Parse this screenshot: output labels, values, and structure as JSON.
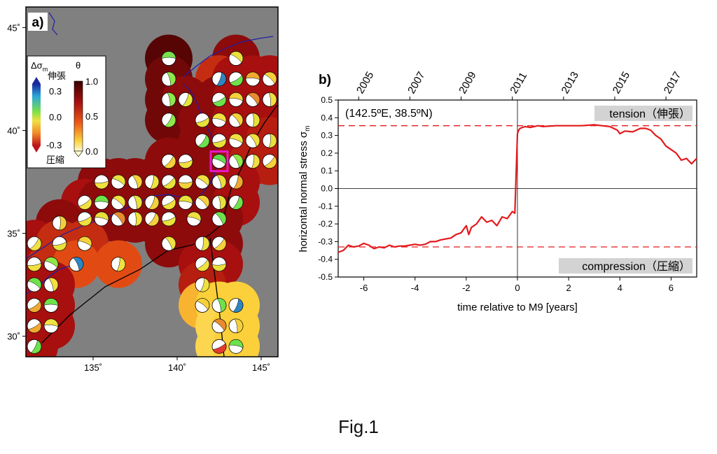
{
  "figure_caption": "Fig.1",
  "panel_a": {
    "label": "a)",
    "lat_ticks": [
      "45˚",
      "40˚",
      "35˚",
      "30˚"
    ],
    "lat_values": [
      45,
      40,
      35,
      30
    ],
    "lon_ticks": [
      "135˚",
      "140˚",
      "145˚"
    ],
    "lon_values": [
      135,
      140,
      145
    ],
    "lon_range": [
      131,
      146
    ],
    "lat_range": [
      29,
      46
    ],
    "legend": {
      "title_sigma": "Δσ",
      "title_sigma_sub": "m",
      "title_theta": "θ",
      "tension_label": "伸張",
      "compression_label": "圧縮",
      "sigma_ticks": [
        "0.3",
        "0.0",
        "-0.3"
      ],
      "theta_ticks": [
        "1.0",
        "0.5",
        "0.0"
      ]
    },
    "colors": {
      "land": "#808080",
      "coast": "#1d1dae",
      "highlight_box": "#e619c8"
    },
    "cells": [
      {
        "lon": 139.5,
        "lat": 43.5,
        "theta": 0.95,
        "ball": "#78e04a"
      },
      {
        "lon": 143.5,
        "lat": 43.5,
        "theta": 0.85,
        "ball": "#e8e13c"
      },
      {
        "lon": 139.5,
        "lat": 42.5,
        "theta": 0.9,
        "ball": "#8fe84a"
      },
      {
        "lon": 142.5,
        "lat": 42.5,
        "theta": 0.7,
        "ball": "#2e86c1"
      },
      {
        "lon": 143.5,
        "lat": 42.5,
        "theta": 0.8,
        "ball": "#6ee24c"
      },
      {
        "lon": 144.5,
        "lat": 42.5,
        "theta": 0.8,
        "ball": "#f0a830"
      },
      {
        "lon": 145.5,
        "lat": 42.5,
        "theta": 0.8,
        "ball": "#f4d13a"
      },
      {
        "lon": 139.5,
        "lat": 41.5,
        "theta": 0.9,
        "ball": "#8fe84a"
      },
      {
        "lon": 140.5,
        "lat": 41.5,
        "theta": 0.85,
        "ball": "#e4e63a"
      },
      {
        "lon": 142.5,
        "lat": 41.5,
        "theta": 0.85,
        "ball": "#6ee24c"
      },
      {
        "lon": 143.5,
        "lat": 41.5,
        "theta": 0.8,
        "ball": "#f4d13a"
      },
      {
        "lon": 144.5,
        "lat": 41.5,
        "theta": 0.8,
        "ball": "#e88a30"
      },
      {
        "lon": 145.5,
        "lat": 41.5,
        "theta": 0.8,
        "ball": "#f0e040"
      },
      {
        "lon": 139.5,
        "lat": 40.5,
        "theta": 0.9,
        "ball": "#8fe84a"
      },
      {
        "lon": 141.5,
        "lat": 40.5,
        "theta": 0.85,
        "ball": "#e8e13c"
      },
      {
        "lon": 142.5,
        "lat": 40.5,
        "theta": 0.85,
        "ball": "#f0e040"
      },
      {
        "lon": 143.5,
        "lat": 40.5,
        "theta": 0.8,
        "ball": "#f4d13a"
      },
      {
        "lon": 144.5,
        "lat": 40.5,
        "theta": 0.8,
        "ball": "#e8e13c"
      },
      {
        "lon": 141.5,
        "lat": 39.5,
        "theta": 0.85,
        "ball": "#6ee24c"
      },
      {
        "lon": 142.5,
        "lat": 39.5,
        "theta": 0.85,
        "ball": "#e8e13c"
      },
      {
        "lon": 143.5,
        "lat": 39.5,
        "theta": 0.8,
        "ball": "#f0e040"
      },
      {
        "lon": 144.5,
        "lat": 39.5,
        "theta": 0.8,
        "ball": "#f0e040"
      },
      {
        "lon": 145.5,
        "lat": 39.5,
        "theta": 0.75,
        "ball": "#e8e13c"
      },
      {
        "lon": 139.5,
        "lat": 38.5,
        "theta": 0.85,
        "ball": "#f4d13a"
      },
      {
        "lon": 140.5,
        "lat": 38.5,
        "theta": 0.85,
        "ball": "#f0e040"
      },
      {
        "lon": 142.5,
        "lat": 38.5,
        "theta": 0.85,
        "ball": "#5fdc4a"
      },
      {
        "lon": 143.5,
        "lat": 38.5,
        "theta": 0.8,
        "ball": "#8fe84a"
      },
      {
        "lon": 144.5,
        "lat": 38.5,
        "theta": 0.75,
        "ball": "#f0e040"
      },
      {
        "lon": 145.5,
        "lat": 38.5,
        "theta": 0.75,
        "ball": "#f4d13a"
      },
      {
        "lon": 135.5,
        "lat": 37.5,
        "theta": 0.85,
        "ball": "#f0e040"
      },
      {
        "lon": 136.5,
        "lat": 37.5,
        "theta": 0.85,
        "ball": "#e8e13c"
      },
      {
        "lon": 137.5,
        "lat": 37.5,
        "theta": 0.85,
        "ball": "#f4d13a"
      },
      {
        "lon": 138.5,
        "lat": 37.5,
        "theta": 0.85,
        "ball": "#f0e040"
      },
      {
        "lon": 139.5,
        "lat": 37.5,
        "theta": 0.85,
        "ball": "#e8e13c"
      },
      {
        "lon": 140.5,
        "lat": 37.5,
        "theta": 0.85,
        "ball": "#f4d13a"
      },
      {
        "lon": 141.5,
        "lat": 37.5,
        "theta": 0.85,
        "ball": "#f0e040"
      },
      {
        "lon": 142.5,
        "lat": 37.5,
        "theta": 0.85,
        "ball": "#e8e13c"
      },
      {
        "lon": 143.5,
        "lat": 37.5,
        "theta": 0.8,
        "ball": "#f0a830"
      },
      {
        "lon": 134.5,
        "lat": 36.5,
        "theta": 0.8,
        "ball": "#f0e040"
      },
      {
        "lon": 135.5,
        "lat": 36.5,
        "theta": 0.85,
        "ball": "#6ee24c"
      },
      {
        "lon": 136.5,
        "lat": 36.5,
        "theta": 0.85,
        "ball": "#f0e040"
      },
      {
        "lon": 137.5,
        "lat": 36.5,
        "theta": 0.85,
        "ball": "#e8e13c"
      },
      {
        "lon": 138.5,
        "lat": 36.5,
        "theta": 0.85,
        "ball": "#f4d13a"
      },
      {
        "lon": 139.5,
        "lat": 36.5,
        "theta": 0.85,
        "ball": "#f0e040"
      },
      {
        "lon": 140.5,
        "lat": 36.5,
        "theta": 0.85,
        "ball": "#e8e13c"
      },
      {
        "lon": 141.5,
        "lat": 36.5,
        "theta": 0.85,
        "ball": "#f4d13a"
      },
      {
        "lon": 142.5,
        "lat": 36.5,
        "theta": 0.85,
        "ball": "#e8e13c"
      },
      {
        "lon": 143.5,
        "lat": 36.5,
        "theta": 0.8,
        "ball": "#6ee24c"
      },
      {
        "lon": 134.5,
        "lat": 35.7,
        "theta": 0.8,
        "ball": "#f0e040"
      },
      {
        "lon": 135.5,
        "lat": 35.7,
        "theta": 0.85,
        "ball": "#e8e13c"
      },
      {
        "lon": 136.5,
        "lat": 35.7,
        "theta": 0.85,
        "ball": "#e88a30"
      },
      {
        "lon": 137.5,
        "lat": 35.7,
        "theta": 0.85,
        "ball": "#f0e040"
      },
      {
        "lon": 138.5,
        "lat": 35.7,
        "theta": 0.85,
        "ball": "#f4d13a"
      },
      {
        "lon": 139.5,
        "lat": 35.7,
        "theta": 0.85,
        "ball": "#e8e13c"
      },
      {
        "lon": 141.0,
        "lat": 35.7,
        "theta": 0.85,
        "ball": "#f0e040"
      },
      {
        "lon": 142.5,
        "lat": 35.7,
        "theta": 0.85,
        "ball": "#6ee24c"
      },
      {
        "lon": 133.0,
        "lat": 35.5,
        "theta": 0.85,
        "ball": "#f4d13a"
      },
      {
        "lon": 131.5,
        "lat": 34.5,
        "theta": 0.8,
        "ball": "#f0e040"
      },
      {
        "lon": 133.0,
        "lat": 34.5,
        "theta": 0.7,
        "ball": "#e8e13c"
      },
      {
        "lon": 134.5,
        "lat": 34.5,
        "theta": 0.7,
        "ball": "#f4d13a"
      },
      {
        "lon": 139.5,
        "lat": 34.5,
        "theta": 0.85,
        "ball": "#f0e040"
      },
      {
        "lon": 141.5,
        "lat": 34.5,
        "theta": 0.85,
        "ball": "#f0e040"
      },
      {
        "lon": 142.5,
        "lat": 34.5,
        "theta": 0.85,
        "ball": "#f4d13a"
      },
      {
        "lon": 131.5,
        "lat": 33.5,
        "theta": 0.8,
        "ball": "#f0e040"
      },
      {
        "lon": 132.5,
        "lat": 33.5,
        "theta": 0.7,
        "ball": "#8fe84a"
      },
      {
        "lon": 134.0,
        "lat": 33.5,
        "theta": 0.6,
        "ball": "#2e86c1"
      },
      {
        "lon": 136.5,
        "lat": 33.5,
        "theta": 0.6,
        "ball": "#f0e040"
      },
      {
        "lon": 141.5,
        "lat": 33.5,
        "theta": 0.8,
        "ball": "#f0e040"
      },
      {
        "lon": 142.5,
        "lat": 33.5,
        "theta": 0.8,
        "ball": "#e8e13c"
      },
      {
        "lon": 131.5,
        "lat": 32.5,
        "theta": 0.8,
        "ball": "#6ee24c"
      },
      {
        "lon": 132.5,
        "lat": 32.5,
        "theta": 0.8,
        "ball": "#f0e040"
      },
      {
        "lon": 141.5,
        "lat": 32.5,
        "theta": 0.75,
        "ball": "#f0e040"
      },
      {
        "lon": 131.5,
        "lat": 31.5,
        "theta": 0.8,
        "ball": "#f0a830"
      },
      {
        "lon": 132.5,
        "lat": 31.5,
        "theta": 0.8,
        "ball": "#6ee24c"
      },
      {
        "lon": 141.5,
        "lat": 31.5,
        "theta": 0.4,
        "ball": "#f4d13a"
      },
      {
        "lon": 142.5,
        "lat": 31.5,
        "theta": 0.35,
        "ball": "#6ee24c"
      },
      {
        "lon": 143.5,
        "lat": 31.5,
        "theta": 0.35,
        "ball": "#2e86c1"
      },
      {
        "lon": 131.5,
        "lat": 30.5,
        "theta": 0.8,
        "ball": "#f0a830"
      },
      {
        "lon": 132.5,
        "lat": 30.5,
        "theta": 0.8,
        "ball": "#f0e040"
      },
      {
        "lon": 142.5,
        "lat": 30.5,
        "theta": 0.3,
        "ball": "#e88a30"
      },
      {
        "lon": 143.5,
        "lat": 30.5,
        "theta": 0.35,
        "ball": "#f4d13a"
      },
      {
        "lon": 131.5,
        "lat": 29.5,
        "theta": 0.8,
        "ball": "#6ee24c"
      },
      {
        "lon": 142.5,
        "lat": 29.5,
        "theta": 0.3,
        "ball": "#e23b2e"
      },
      {
        "lon": 143.5,
        "lat": 29.5,
        "theta": 0.35,
        "ball": "#6ee24c"
      }
    ],
    "highlight_cell": {
      "lon": 142.5,
      "lat": 38.5
    }
  },
  "chart_data": {
    "type": "line",
    "panel_label": "b)",
    "location_label": "(142.5ºE, 38.5ºN)",
    "xlabel": "time relative to M9 [years]",
    "ylabel": "horizontal normal stress σ",
    "ylabel_sub": "m",
    "xlim": [
      -7,
      7
    ],
    "ylim": [
      -0.5,
      0.5
    ],
    "x_ticks": [
      -6,
      -4,
      -2,
      0,
      2,
      4,
      6
    ],
    "y_ticks": [
      0.5,
      0.4,
      0.3,
      0.2,
      0.1,
      0.0,
      -0.1,
      -0.2,
      -0.3,
      -0.4,
      -0.5
    ],
    "top_axis_labels": [
      "2005",
      "2007",
      "2009",
      "2011",
      "2013",
      "2015",
      "2017"
    ],
    "top_axis_values": [
      -6.2,
      -4.2,
      -2.2,
      -0.2,
      1.8,
      3.8,
      5.8
    ],
    "tension_label": "tension（伸張）",
    "compression_label": "compression（圧縮）",
    "tension_level": 0.355,
    "compression_level": -0.33,
    "line_color": "#e31a1c",
    "series": [
      {
        "x": [
          -7.0,
          -6.8,
          -6.6,
          -6.4,
          -6.2,
          -6.0,
          -5.8,
          -5.6,
          -5.4,
          -5.2,
          -5.0,
          -4.8,
          -4.6,
          -4.4,
          -4.2,
          -4.0,
          -3.8,
          -3.6,
          -3.4,
          -3.2,
          -3.0,
          -2.8,
          -2.6,
          -2.4,
          -2.2,
          -2.0,
          -1.9,
          -1.8,
          -1.6,
          -1.4,
          -1.2,
          -1.0,
          -0.8,
          -0.6,
          -0.4,
          -0.2,
          -0.1,
          0.0,
          0.05,
          0.1,
          0.3,
          0.5,
          0.8,
          1.0,
          1.5,
          2.0,
          2.5,
          3.0,
          3.3,
          3.6,
          3.9,
          4.0,
          4.2,
          4.5,
          4.8,
          5.0,
          5.2,
          5.4,
          5.6,
          5.8,
          6.0,
          6.2,
          6.4,
          6.6,
          6.8,
          7.0
        ],
        "y": [
          -0.36,
          -0.35,
          -0.32,
          -0.33,
          -0.325,
          -0.31,
          -0.32,
          -0.34,
          -0.33,
          -0.335,
          -0.32,
          -0.33,
          -0.325,
          -0.325,
          -0.32,
          -0.315,
          -0.32,
          -0.315,
          -0.3,
          -0.3,
          -0.29,
          -0.285,
          -0.28,
          -0.26,
          -0.25,
          -0.21,
          -0.26,
          -0.22,
          -0.2,
          -0.16,
          -0.19,
          -0.18,
          -0.21,
          -0.16,
          -0.17,
          -0.13,
          -0.14,
          0.31,
          0.33,
          0.34,
          0.35,
          0.345,
          0.355,
          0.35,
          0.355,
          0.355,
          0.355,
          0.36,
          0.355,
          0.35,
          0.33,
          0.31,
          0.325,
          0.32,
          0.34,
          0.34,
          0.33,
          0.3,
          0.28,
          0.24,
          0.22,
          0.2,
          0.16,
          0.17,
          0.14,
          0.17
        ]
      }
    ]
  }
}
